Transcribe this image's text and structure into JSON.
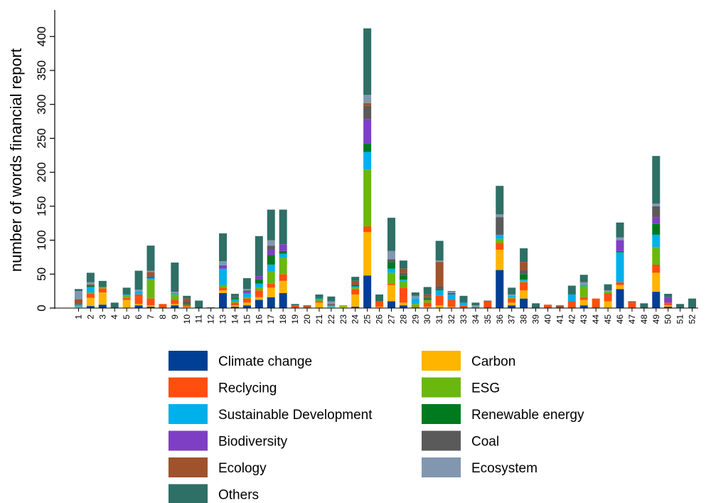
{
  "chart_data": {
    "type": "stacked_bar",
    "y_label": "number of words financial report",
    "categories": [
      "1",
      "2",
      "3",
      "4",
      "5",
      "6",
      "7",
      "8",
      "9",
      "10",
      "11",
      "12",
      "13",
      "14",
      "15",
      "16",
      "17",
      "18",
      "19",
      "20",
      "21",
      "22",
      "23",
      "24",
      "25",
      "26",
      "27",
      "28",
      "29",
      "30",
      "31",
      "32",
      "33",
      "34",
      "35",
      "36",
      "37",
      "38",
      "39",
      "40",
      "41",
      "42",
      "43",
      "44",
      "45",
      "46",
      "47",
      "48",
      "49",
      "50",
      "51",
      "52"
    ],
    "ylim": [
      0,
      437
    ],
    "yticks": [
      0,
      50,
      100,
      150,
      200,
      250,
      300,
      350,
      400
    ],
    "grid": false,
    "series": [
      {
        "name": "Climate change",
        "color": "#003f95",
        "values": [
          0,
          3,
          5,
          0,
          0,
          4,
          2,
          0,
          4,
          0,
          0,
          0,
          22,
          2,
          4,
          12,
          16,
          22,
          0,
          0,
          0,
          0,
          0,
          2,
          48,
          0,
          10,
          4,
          0,
          0,
          0,
          0,
          0,
          0,
          0,
          56,
          4,
          14,
          0,
          0,
          0,
          0,
          4,
          0,
          0,
          28,
          0,
          0,
          24,
          2,
          0,
          0
        ]
      },
      {
        "name": "Carbon",
        "color": "#ffb400",
        "values": [
          2,
          12,
          18,
          0,
          12,
          2,
          2,
          0,
          2,
          2,
          0,
          0,
          4,
          2,
          4,
          4,
          14,
          18,
          0,
          0,
          8,
          2,
          2,
          18,
          64,
          2,
          24,
          4,
          0,
          2,
          4,
          2,
          0,
          0,
          0,
          30,
          4,
          12,
          0,
          0,
          0,
          0,
          8,
          0,
          10,
          6,
          0,
          0,
          28,
          2,
          0,
          0
        ]
      },
      {
        "name": "Reclycing",
        "color": "#ff4e0e",
        "values": [
          0,
          6,
          6,
          0,
          3,
          14,
          10,
          6,
          6,
          3,
          0,
          0,
          4,
          4,
          6,
          10,
          6,
          10,
          4,
          2,
          2,
          0,
          0,
          8,
          8,
          8,
          2,
          22,
          2,
          6,
          14,
          10,
          4,
          0,
          10,
          10,
          6,
          12,
          0,
          5,
          0,
          10,
          4,
          14,
          12,
          4,
          8,
          0,
          12,
          4,
          0,
          0
        ]
      },
      {
        "name": "ESG",
        "color": "#6ab70e",
        "values": [
          0,
          2,
          2,
          0,
          3,
          0,
          28,
          0,
          8,
          0,
          0,
          0,
          4,
          2,
          2,
          4,
          18,
          24,
          0,
          0,
          2,
          0,
          2,
          2,
          84,
          0,
          16,
          10,
          4,
          4,
          0,
          0,
          0,
          0,
          0,
          6,
          2,
          2,
          0,
          0,
          0,
          0,
          16,
          0,
          2,
          0,
          0,
          0,
          26,
          0,
          0,
          0
        ]
      },
      {
        "name": "Sustainable Development",
        "color": "#00b0eb",
        "values": [
          3,
          8,
          0,
          0,
          2,
          5,
          2,
          0,
          2,
          0,
          0,
          0,
          24,
          3,
          6,
          6,
          10,
          6,
          0,
          0,
          2,
          2,
          0,
          2,
          26,
          0,
          6,
          2,
          8,
          0,
          8,
          8,
          4,
          0,
          0,
          6,
          2,
          2,
          0,
          0,
          0,
          10,
          2,
          0,
          0,
          44,
          0,
          0,
          18,
          0,
          0,
          0
        ]
      },
      {
        "name": "Renewable energy",
        "color": "#007a1e",
        "values": [
          0,
          2,
          0,
          0,
          0,
          0,
          0,
          0,
          0,
          2,
          0,
          0,
          0,
          2,
          0,
          6,
          14,
          4,
          0,
          0,
          0,
          0,
          0,
          2,
          12,
          0,
          10,
          6,
          0,
          2,
          2,
          0,
          0,
          0,
          0,
          0,
          0,
          8,
          0,
          0,
          0,
          0,
          0,
          0,
          0,
          2,
          0,
          0,
          16,
          0,
          0,
          0
        ]
      },
      {
        "name": "Biodiversity",
        "color": "#7f3fc4",
        "values": [
          0,
          0,
          0,
          0,
          0,
          0,
          0,
          0,
          0,
          0,
          0,
          0,
          5,
          0,
          2,
          5,
          8,
          10,
          0,
          0,
          0,
          0,
          0,
          0,
          36,
          0,
          0,
          0,
          0,
          0,
          0,
          0,
          0,
          0,
          0,
          0,
          0,
          0,
          0,
          0,
          0,
          0,
          0,
          0,
          0,
          16,
          0,
          0,
          10,
          8,
          0,
          0
        ]
      },
      {
        "name": "Coal",
        "color": "#5a5a5a",
        "values": [
          2,
          0,
          0,
          0,
          0,
          0,
          3,
          0,
          0,
          3,
          0,
          0,
          0,
          2,
          2,
          0,
          6,
          0,
          0,
          0,
          0,
          2,
          0,
          0,
          20,
          0,
          4,
          4,
          0,
          2,
          4,
          2,
          0,
          0,
          0,
          26,
          0,
          6,
          0,
          0,
          0,
          0,
          0,
          0,
          0,
          0,
          0,
          0,
          16,
          0,
          0,
          0
        ]
      },
      {
        "name": "Ecology",
        "color": "#a0522d",
        "values": [
          6,
          2,
          0,
          0,
          0,
          0,
          6,
          0,
          0,
          4,
          0,
          0,
          0,
          0,
          0,
          0,
          0,
          0,
          0,
          2,
          0,
          0,
          0,
          6,
          4,
          0,
          0,
          6,
          0,
          4,
          36,
          0,
          0,
          0,
          0,
          0,
          0,
          12,
          0,
          0,
          4,
          0,
          0,
          0,
          0,
          0,
          2,
          0,
          0,
          0,
          0,
          0
        ]
      },
      {
        "name": "Ecosystem",
        "color": "#8197b0",
        "values": [
          12,
          3,
          0,
          0,
          0,
          2,
          2,
          0,
          2,
          0,
          0,
          0,
          6,
          0,
          2,
          0,
          8,
          0,
          0,
          0,
          0,
          4,
          0,
          0,
          12,
          0,
          12,
          0,
          4,
          0,
          2,
          2,
          0,
          4,
          0,
          4,
          2,
          0,
          0,
          0,
          0,
          0,
          4,
          0,
          2,
          4,
          0,
          0,
          4,
          0,
          0,
          0
        ]
      },
      {
        "name": "Others",
        "color": "#2e6f66",
        "values": [
          3,
          14,
          9,
          8,
          10,
          28,
          37,
          0,
          43,
          4,
          11,
          1,
          41,
          4,
          16,
          59,
          45,
          51,
          2,
          0,
          6,
          7,
          0,
          6,
          98,
          10,
          49,
          12,
          5,
          11,
          29,
          1,
          10,
          4,
          1,
          42,
          10,
          20,
          7,
          0,
          0,
          13,
          11,
          0,
          9,
          22,
          0,
          7,
          70,
          5,
          6,
          14
        ]
      }
    ]
  }
}
